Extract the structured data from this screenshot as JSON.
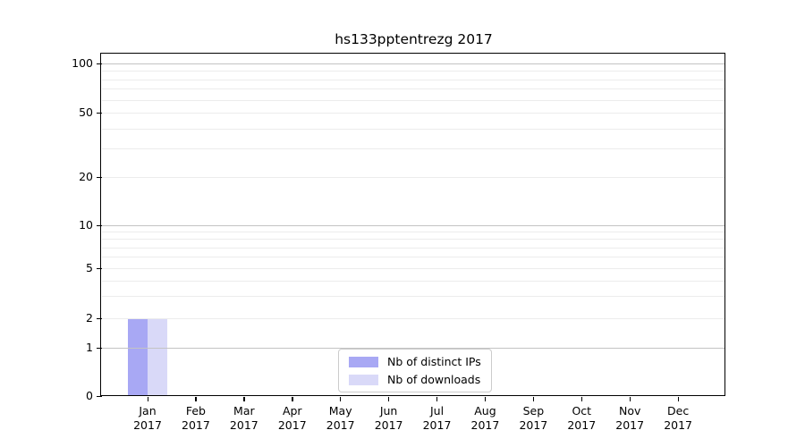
{
  "chart_data": {
    "type": "bar",
    "title": "hs133pptentrezg 2017",
    "x_categories": [
      {
        "month": "Jan",
        "year": "2017"
      },
      {
        "month": "Feb",
        "year": "2017"
      },
      {
        "month": "Mar",
        "year": "2017"
      },
      {
        "month": "Apr",
        "year": "2017"
      },
      {
        "month": "May",
        "year": "2017"
      },
      {
        "month": "Jun",
        "year": "2017"
      },
      {
        "month": "Jul",
        "year": "2017"
      },
      {
        "month": "Aug",
        "year": "2017"
      },
      {
        "month": "Sep",
        "year": "2017"
      },
      {
        "month": "Oct",
        "year": "2017"
      },
      {
        "month": "Nov",
        "year": "2017"
      },
      {
        "month": "Dec",
        "year": "2017"
      }
    ],
    "series": [
      {
        "name": "Nb of distinct IPs",
        "color": "#a8a8f4",
        "values": [
          2,
          0,
          0,
          0,
          0,
          0,
          0,
          0,
          0,
          0,
          0,
          0
        ]
      },
      {
        "name": "Nb of downloads",
        "color": "#d9d9f8",
        "values": [
          2,
          0,
          0,
          0,
          0,
          0,
          0,
          0,
          0,
          0,
          0,
          0
        ]
      }
    ],
    "yticks": [
      "0",
      "1",
      "2",
      "5",
      "10",
      "20",
      "50",
      "100"
    ],
    "ylabel": "",
    "xlabel": "",
    "yscale": "log-like (0 baseline, labeled 0,1,2,5,10,20,50,100)",
    "grid": "horizontal major (1,10,100) + minor log subdivisions",
    "legend_position": "bottom-center"
  },
  "colors": {
    "background": "#ffffff",
    "axis": "#000000",
    "major_grid": "#c3c3c3",
    "minor_grid": "#ececec",
    "legend_border": "#cccccc"
  }
}
